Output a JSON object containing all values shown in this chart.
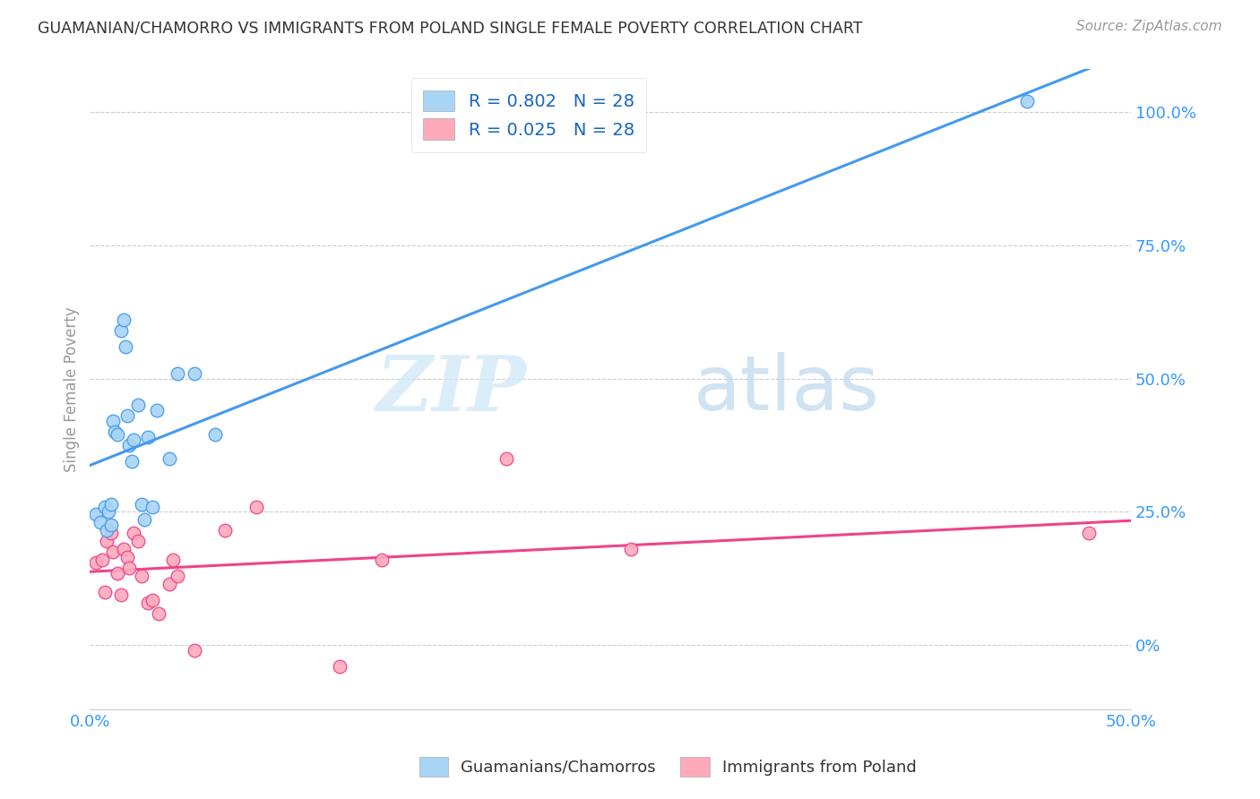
{
  "title": "GUAMANIAN/CHAMORRO VS IMMIGRANTS FROM POLAND SINGLE FEMALE POVERTY CORRELATION CHART",
  "source": "Source: ZipAtlas.com",
  "ylabel": "Single Female Poverty",
  "xlim": [
    0.0,
    0.5
  ],
  "ylim": [
    -0.12,
    1.08
  ],
  "blue_R": 0.802,
  "blue_N": 28,
  "pink_R": 0.025,
  "pink_N": 28,
  "blue_color": "#A8D4F5",
  "blue_line_color": "#4499EE",
  "pink_color": "#FFAABB",
  "pink_line_color": "#EE4488",
  "legend_label_blue": "Guamanians/Chamorros",
  "legend_label_pink": "Immigrants from Poland",
  "watermark_zip": "ZIP",
  "watermark_atlas": "atlas",
  "blue_x": [
    0.003,
    0.005,
    0.007,
    0.008,
    0.009,
    0.01,
    0.01,
    0.011,
    0.012,
    0.013,
    0.015,
    0.016,
    0.017,
    0.018,
    0.019,
    0.02,
    0.021,
    0.023,
    0.025,
    0.026,
    0.028,
    0.03,
    0.032,
    0.038,
    0.042,
    0.05,
    0.06,
    0.45
  ],
  "blue_y": [
    0.245,
    0.23,
    0.26,
    0.215,
    0.25,
    0.225,
    0.265,
    0.42,
    0.4,
    0.395,
    0.59,
    0.61,
    0.56,
    0.43,
    0.375,
    0.345,
    0.385,
    0.45,
    0.265,
    0.235,
    0.39,
    0.26,
    0.44,
    0.35,
    0.51,
    0.51,
    0.395,
    1.02
  ],
  "pink_x": [
    0.003,
    0.006,
    0.007,
    0.008,
    0.01,
    0.011,
    0.013,
    0.015,
    0.016,
    0.018,
    0.019,
    0.021,
    0.023,
    0.025,
    0.028,
    0.03,
    0.033,
    0.038,
    0.04,
    0.042,
    0.05,
    0.065,
    0.08,
    0.12,
    0.14,
    0.2,
    0.26,
    0.48
  ],
  "pink_y": [
    0.155,
    0.16,
    0.1,
    0.195,
    0.21,
    0.175,
    0.135,
    0.095,
    0.18,
    0.165,
    0.145,
    0.21,
    0.195,
    0.13,
    0.08,
    0.085,
    0.06,
    0.115,
    0.16,
    0.13,
    -0.01,
    0.215,
    0.26,
    -0.04,
    0.16,
    0.35,
    0.18,
    0.21
  ]
}
